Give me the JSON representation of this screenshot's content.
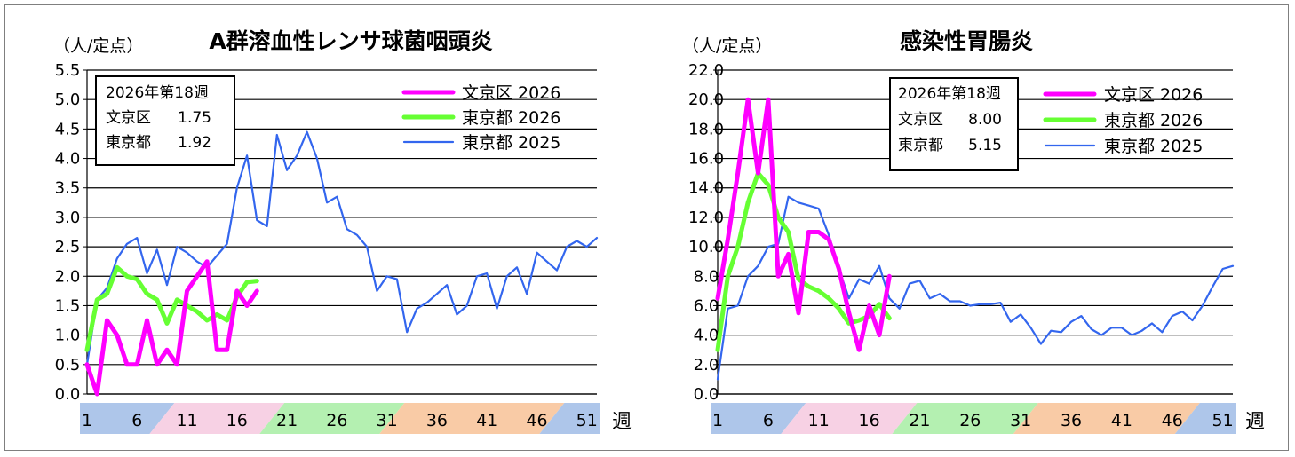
{
  "chart_data": [
    {
      "type": "line",
      "title": "A群溶血性レンサ球菌咽頭炎",
      "ylabel": "（人/定点）",
      "xlabel": "週",
      "ylim": [
        0,
        5.5
      ],
      "xlim": [
        1,
        52
      ],
      "y_ticks": [
        "0.0",
        "0.5",
        "1.0",
        "1.5",
        "2.0",
        "2.5",
        "3.0",
        "3.5",
        "4.0",
        "4.5",
        "5.0",
        "5.5"
      ],
      "x_ticks": [
        "1",
        "6",
        "11",
        "16",
        "21",
        "26",
        "31",
        "36",
        "41",
        "46",
        "51"
      ],
      "grid": true,
      "season_band_colors": [
        "#aec6ea",
        "#f7d1e4",
        "#b4f0b1",
        "#f9cba6",
        "#aec6ea"
      ],
      "info_box": {
        "title": "2026年第18週",
        "rows": [
          {
            "label": "文京区",
            "value": "1.75"
          },
          {
            "label": "東京都",
            "value": "1.92"
          }
        ]
      },
      "legend_position": "top-right",
      "series": [
        {
          "name": "文京区 2026",
          "color": "#ff00ff",
          "values": [
            0.5,
            0.0,
            1.25,
            1.0,
            0.5,
            0.5,
            1.25,
            0.5,
            0.75,
            0.5,
            1.75,
            2.0,
            2.25,
            0.75,
            0.75,
            1.75,
            1.5,
            1.75
          ]
        },
        {
          "name": "東京都 2026",
          "color": "#66ff33",
          "values": [
            0.75,
            1.6,
            1.7,
            2.15,
            2.0,
            1.95,
            1.7,
            1.6,
            1.2,
            1.6,
            1.5,
            1.4,
            1.25,
            1.35,
            1.25,
            1.65,
            1.9,
            1.92
          ]
        },
        {
          "name": "東京都 2025",
          "color": "#3366ee",
          "values": [
            0.5,
            1.6,
            1.8,
            2.3,
            2.55,
            2.65,
            2.05,
            2.45,
            1.85,
            2.5,
            2.4,
            2.25,
            2.15,
            2.35,
            2.55,
            3.5,
            4.05,
            2.95,
            2.85,
            4.4,
            3.8,
            4.05,
            4.45,
            4.0,
            3.25,
            3.35,
            2.8,
            2.7,
            2.5,
            1.75,
            2.0,
            1.95,
            1.05,
            1.45,
            1.55,
            1.7,
            1.85,
            1.35,
            1.5,
            2.0,
            2.05,
            1.45,
            2.0,
            2.15,
            1.7,
            2.4,
            2.25,
            2.1,
            2.5,
            2.6,
            2.5,
            2.65
          ]
        }
      ]
    },
    {
      "type": "line",
      "title": "感染性胃腸炎",
      "ylabel": "（人/定点）",
      "xlabel": "週",
      "ylim": [
        0,
        22
      ],
      "xlim": [
        1,
        52
      ],
      "y_ticks": [
        "0.0",
        "2.0",
        "4.0",
        "6.0",
        "8.0",
        "10.0",
        "12.0",
        "14.0",
        "16.0",
        "18.0",
        "20.0",
        "22.0"
      ],
      "x_ticks": [
        "1",
        "6",
        "11",
        "16",
        "21",
        "26",
        "31",
        "36",
        "41",
        "46",
        "51"
      ],
      "grid": true,
      "season_band_colors": [
        "#aec6ea",
        "#f7d1e4",
        "#b4f0b1",
        "#f9cba6",
        "#aec6ea"
      ],
      "info_box": {
        "title": "2026年第18週",
        "rows": [
          {
            "label": "文京区",
            "value": "8.00"
          },
          {
            "label": "東京都",
            "value": "5.15"
          }
        ]
      },
      "legend_position": "top-right",
      "series": [
        {
          "name": "文京区 2026",
          "color": "#ff00ff",
          "values": [
            6.5,
            10.5,
            15.0,
            20.0,
            15.0,
            20.0,
            8.0,
            9.5,
            5.5,
            11.0,
            11.0,
            10.5,
            8.5,
            5.5,
            3.0,
            6.0,
            4.0,
            8.0
          ]
        },
        {
          "name": "東京都 2026",
          "color": "#66ff33",
          "values": [
            3.0,
            8.0,
            10.0,
            13.0,
            15.0,
            14.2,
            12.0,
            11.0,
            7.8,
            7.3,
            7.0,
            6.5,
            5.8,
            4.8,
            5.0,
            5.3,
            6.1,
            5.15
          ]
        },
        {
          "name": "東京都 2025",
          "color": "#3366ee",
          "values": [
            1.0,
            5.8,
            6.0,
            8.0,
            8.7,
            10.0,
            10.2,
            13.4,
            13.0,
            12.8,
            12.6,
            10.8,
            8.5,
            6.5,
            7.8,
            7.5,
            8.7,
            6.5,
            5.8,
            7.5,
            7.7,
            6.5,
            6.8,
            6.3,
            6.3,
            6.0,
            6.1,
            6.1,
            6.2,
            4.9,
            5.4,
            4.5,
            3.4,
            4.3,
            4.2,
            4.9,
            5.3,
            4.4,
            4.0,
            4.5,
            4.5,
            4.0,
            4.3,
            4.8,
            4.2,
            5.3,
            5.6,
            5.0,
            6.0,
            7.3,
            8.5,
            8.7
          ]
        }
      ]
    }
  ]
}
